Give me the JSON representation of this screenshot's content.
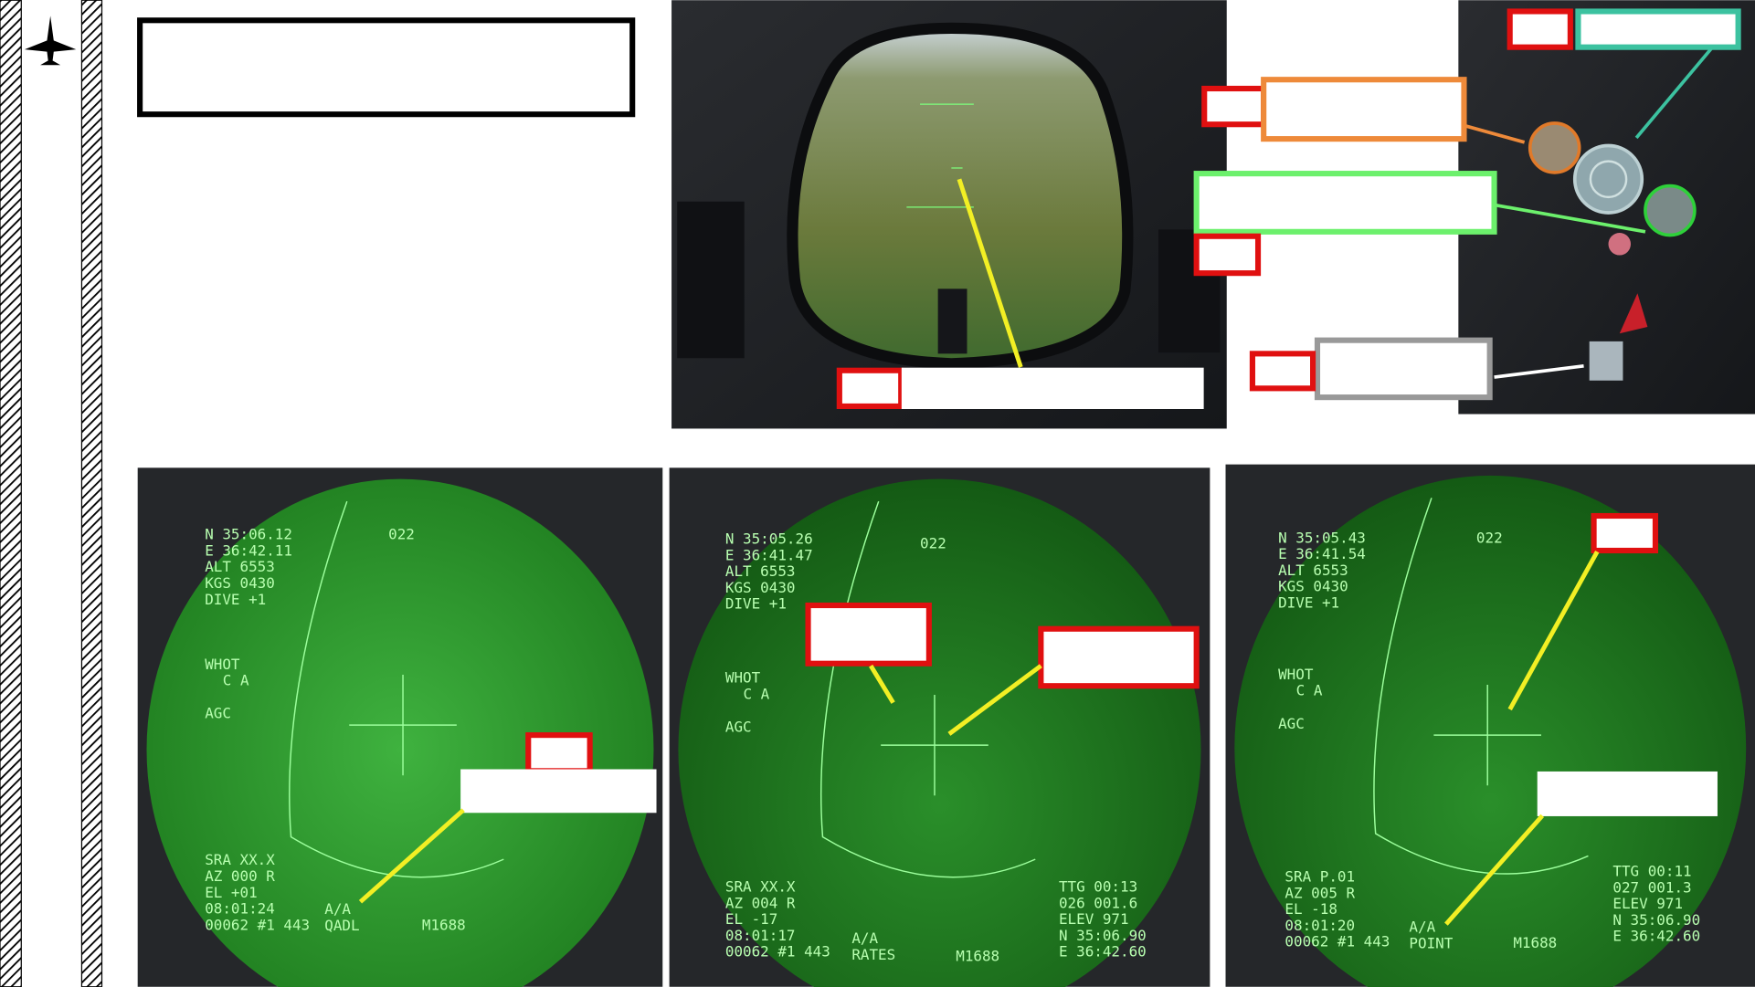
{
  "screens": [
    {
      "nav": [
        "N 35:06.12",
        "E 36:42.11",
        "ALT 6553",
        "KGS 0430",
        "DIVE +1"
      ],
      "heading": "022",
      "sensor": [
        "WHOT",
        "C A",
        "AGC"
      ],
      "status": [
        "SRA XX.X",
        "AZ 000 R",
        "EL +01",
        "08:01:24",
        "00062 #1 443"
      ],
      "mode": [
        "A/A",
        "QADL"
      ],
      "code": "M1688",
      "target": []
    },
    {
      "nav": [
        "N 35:05.26",
        "E 36:41.47",
        "ALT 6553",
        "KGS 0430",
        "DIVE +1"
      ],
      "heading": "022",
      "sensor": [
        "WHOT",
        "C A",
        "AGC"
      ],
      "status": [
        "SRA XX.X",
        "AZ 004 R",
        "EL -17",
        "08:01:17",
        "00062 #1 443"
      ],
      "mode": [
        "A/A",
        "RATES"
      ],
      "code": "M1688",
      "target": [
        "TTG 00:13",
        "026 001.6",
        "ELEV 971",
        "N 35:06.90",
        "E 36:42.60"
      ]
    },
    {
      "nav": [
        "N 35:05.43",
        "E 36:41.54",
        "ALT 6553",
        "KGS 0430",
        "DIVE +1"
      ],
      "heading": "022",
      "sensor": [
        "WHOT",
        "C A",
        "AGC"
      ],
      "status": [
        "SRA P.01",
        "AZ 005 R",
        "EL -18",
        "08:01:20",
        "00062 #1 443"
      ],
      "mode": [
        "A/A",
        "POINT"
      ],
      "code": "M1688",
      "target": [
        "TTG 00:11",
        "027 001.3",
        "ELEV 971",
        "N 35:06.90",
        "E 36:42.60"
      ]
    }
  ]
}
